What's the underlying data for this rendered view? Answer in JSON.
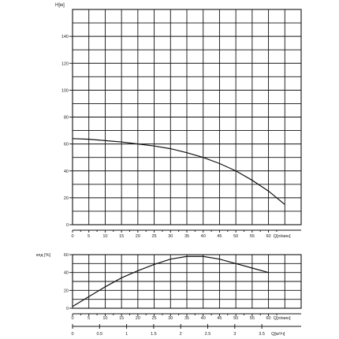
{
  "chart_data": [
    {
      "type": "line",
      "title": "",
      "ylabel": "H[м]",
      "xlabel": "Q[л/мин]",
      "x_ticks": [
        0,
        5,
        10,
        15,
        20,
        25,
        30,
        35,
        40,
        45,
        50,
        55,
        60
      ],
      "y_ticks": [
        0,
        20,
        40,
        60,
        80,
        100,
        120,
        140
      ],
      "xlim": [
        0,
        70
      ],
      "ylim": [
        0,
        160
      ],
      "grid": true,
      "series": [
        {
          "x": [
            0,
            5,
            10,
            15,
            20,
            25,
            30,
            35,
            40,
            45,
            50,
            55,
            60,
            65
          ],
          "y": [
            64,
            63.5,
            62.5,
            61.5,
            60,
            58.5,
            56.5,
            53.5,
            50,
            45.5,
            40,
            33,
            25,
            15
          ]
        }
      ]
    },
    {
      "type": "line",
      "title": "",
      "ylabel": "кпд [%]",
      "xlabel": "Q[л/мин]",
      "x_ticks": [
        0,
        5,
        10,
        15,
        20,
        25,
        30,
        35,
        40,
        45,
        50,
        55,
        60
      ],
      "y_ticks": [
        0,
        20,
        40,
        60
      ],
      "xlim": [
        0,
        70
      ],
      "ylim": [
        0,
        60
      ],
      "grid": true,
      "series": [
        {
          "x": [
            0,
            5,
            10,
            15,
            20,
            25,
            30,
            35,
            40,
            45,
            50,
            55,
            60
          ],
          "y": [
            2,
            13,
            24,
            34,
            42,
            49,
            55,
            58,
            58,
            55,
            50,
            45,
            40
          ]
        }
      ]
    },
    {
      "type": "axis",
      "xlabel": "Q[м³/ч]",
      "x_ticks": [
        0,
        0.5,
        1,
        1.5,
        2,
        2.5,
        3,
        3.5
      ],
      "x_tick_labels": [
        "0",
        "0.5",
        "1",
        "1.5",
        "2",
        "2.5",
        "3",
        "3.5"
      ]
    }
  ],
  "colors": {
    "line": "#111111",
    "grid": "#111111",
    "background": "#ffffff"
  }
}
